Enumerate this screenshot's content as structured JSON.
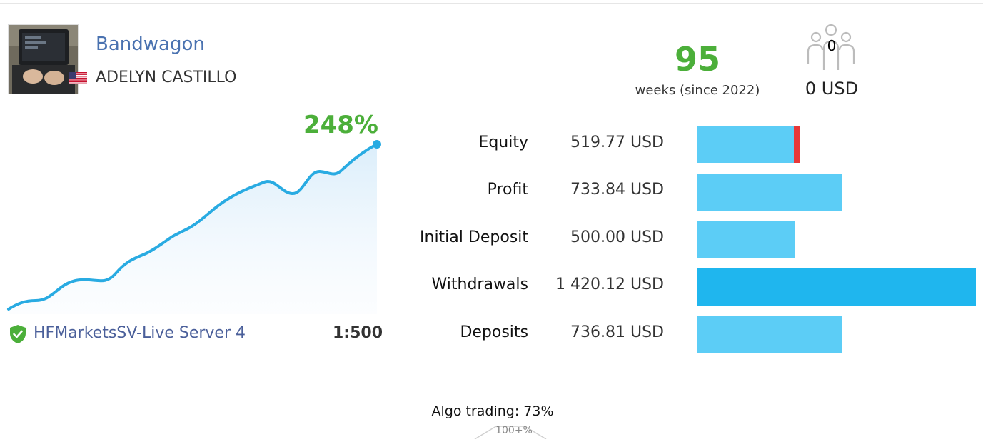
{
  "account": {
    "name": "Bandwagon",
    "owner": "ADELYN CASTILLO",
    "country_flag": "us-flag-icon",
    "server": "HFMarketsSV-Live Server 4",
    "leverage": "1:500"
  },
  "weeks": {
    "value": "95",
    "label": "weeks (since 2022)"
  },
  "subscribers": {
    "count": "0",
    "funds": "0 USD",
    "icon": "subscribers-icon"
  },
  "growth": {
    "percent": "248%"
  },
  "stats": [
    {
      "label": "Equity",
      "value": "519.77 USD",
      "amount": 519.77
    },
    {
      "label": "Profit",
      "value": "733.84 USD",
      "amount": 733.84
    },
    {
      "label": "Initial Deposit",
      "value": "500.00 USD",
      "amount": 500.0
    },
    {
      "label": "Withdrawals",
      "value": "1 420.12 USD",
      "amount": 1420.12
    },
    {
      "label": "Deposits",
      "value": "736.81 USD",
      "amount": 736.81
    }
  ],
  "algo": {
    "label": "Algo trading: 73%",
    "gauge_label": "100+%"
  },
  "colors": {
    "accent_green": "#4caf3a",
    "link_blue": "#4a72b0",
    "bar_light": "#5ccdf6",
    "bar_dark": "#1fb6ee",
    "bar_marker": "#e83838",
    "line": "#29abe2"
  }
}
